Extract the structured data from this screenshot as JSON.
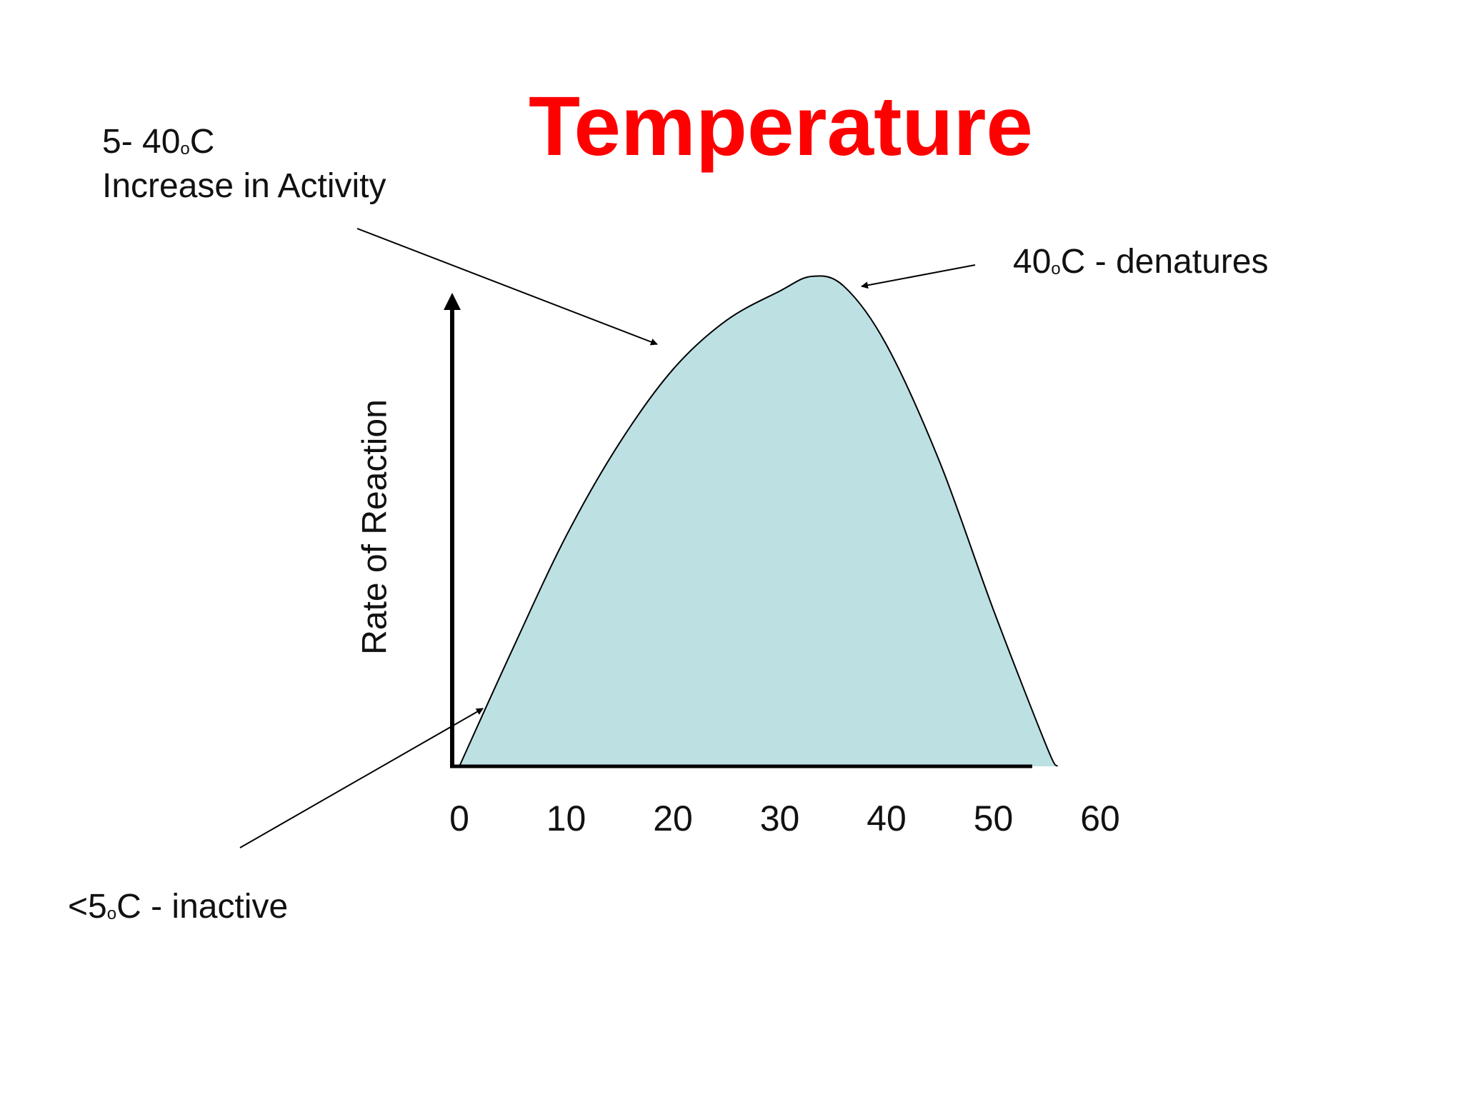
{
  "slide": {
    "title": "Temperature",
    "annotations": {
      "increase": {
        "line1_pre": "5- 40",
        "line1_sup": "o",
        "line1_post": "C",
        "line2": "Increase in Activity"
      },
      "denature": {
        "pre": "40",
        "sup": "o",
        "post": "C - denatures"
      },
      "inactive": {
        "pre": "<5",
        "sup": "o",
        "post": "C - inactive"
      }
    }
  },
  "chart_data": {
    "type": "area",
    "title": "Temperature",
    "xlabel": "",
    "ylabel": "Rate of Reaction",
    "x_ticks": [
      "0",
      "10",
      "20",
      "30",
      "40",
      "50",
      "60"
    ],
    "xlim": [
      0,
      60
    ],
    "ylim": [
      0,
      1
    ],
    "fill_color": "#bde0e3",
    "line_color": "#000000",
    "grid": false,
    "points": [
      {
        "x": 0,
        "y": 0.0
      },
      {
        "x": 5,
        "y": 0.24
      },
      {
        "x": 10,
        "y": 0.47
      },
      {
        "x": 15,
        "y": 0.66
      },
      {
        "x": 20,
        "y": 0.81
      },
      {
        "x": 25,
        "y": 0.91
      },
      {
        "x": 30,
        "y": 0.97
      },
      {
        "x": 33,
        "y": 1.0
      },
      {
        "x": 36,
        "y": 0.98
      },
      {
        "x": 40,
        "y": 0.86
      },
      {
        "x": 45,
        "y": 0.62
      },
      {
        "x": 50,
        "y": 0.32
      },
      {
        "x": 55,
        "y": 0.04
      },
      {
        "x": 56,
        "y": 0.0
      }
    ]
  }
}
